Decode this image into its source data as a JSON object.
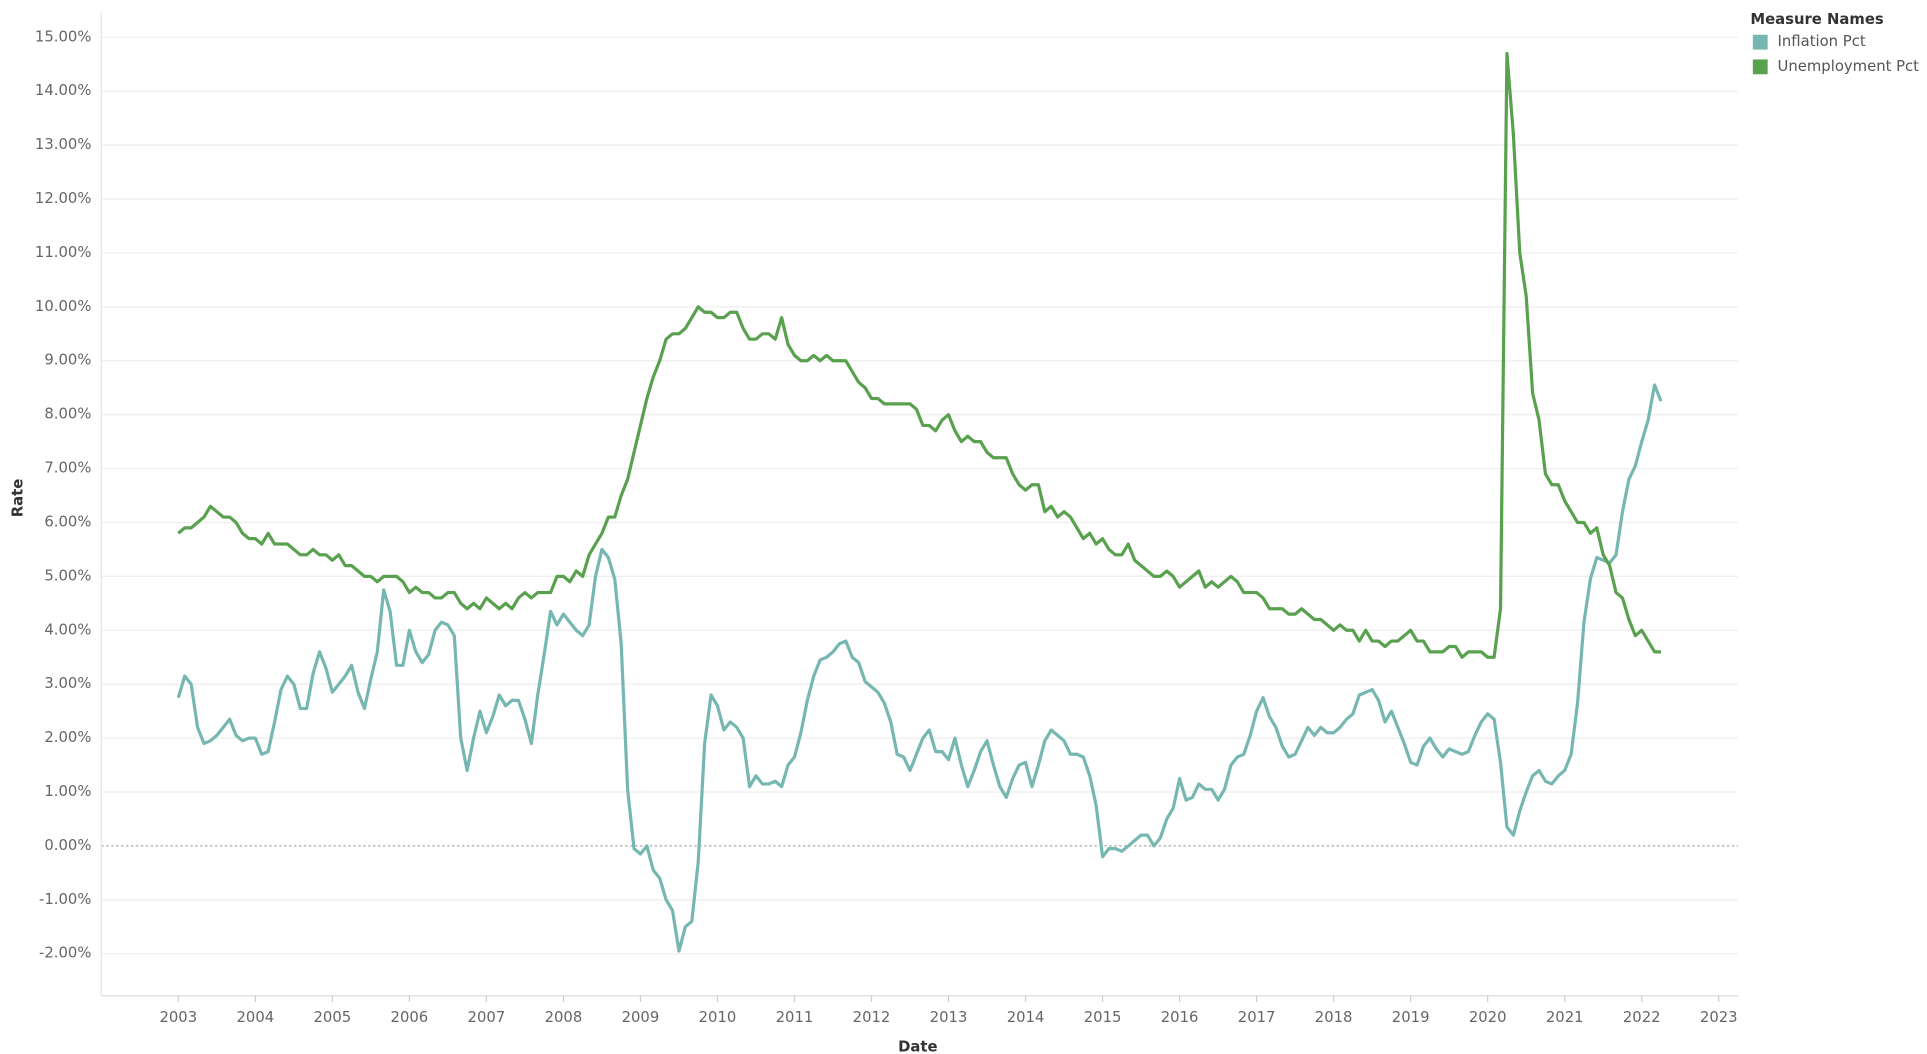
{
  "chart_data": {
    "type": "line",
    "x_label": "Date",
    "y_label": "Rate",
    "legend_title": "Measure Names",
    "legend": "top-right",
    "grid": true,
    "xlim": [
      "2002-01",
      "2023-04"
    ],
    "xticks": [
      2003,
      2004,
      2005,
      2006,
      2007,
      2008,
      2009,
      2010,
      2011,
      2012,
      2013,
      2014,
      2015,
      2016,
      2017,
      2018,
      2019,
      2020,
      2021,
      2022,
      2023
    ],
    "ylim": [
      -2.78,
      15.46
    ],
    "yticks": [
      {
        "value": -2,
        "label": "-2.00%"
      },
      {
        "value": -1,
        "label": "-1.00%"
      },
      {
        "value": 0,
        "label": "0.00%"
      },
      {
        "value": 1,
        "label": "1.00%"
      },
      {
        "value": 2,
        "label": "2.00%"
      },
      {
        "value": 3,
        "label": "3.00%"
      },
      {
        "value": 4,
        "label": "4.00%"
      },
      {
        "value": 5,
        "label": "5.00%"
      },
      {
        "value": 6,
        "label": "6.00%"
      },
      {
        "value": 7,
        "label": "7.00%"
      },
      {
        "value": 8,
        "label": "8.00%"
      },
      {
        "value": 9,
        "label": "9.00%"
      },
      {
        "value": 10,
        "label": "10.00%"
      },
      {
        "value": 11,
        "label": "11.00%"
      },
      {
        "value": 12,
        "label": "12.00%"
      },
      {
        "value": 13,
        "label": "13.00%"
      },
      {
        "value": 14,
        "label": "14.00%"
      },
      {
        "value": 15,
        "label": "15.00%"
      }
    ],
    "x": [
      "2003-01",
      "2003-02",
      "2003-03",
      "2003-04",
      "2003-05",
      "2003-06",
      "2003-07",
      "2003-08",
      "2003-09",
      "2003-10",
      "2003-11",
      "2003-12",
      "2004-01",
      "2004-02",
      "2004-03",
      "2004-04",
      "2004-05",
      "2004-06",
      "2004-07",
      "2004-08",
      "2004-09",
      "2004-10",
      "2004-11",
      "2004-12",
      "2005-01",
      "2005-02",
      "2005-03",
      "2005-04",
      "2005-05",
      "2005-06",
      "2005-07",
      "2005-08",
      "2005-09",
      "2005-10",
      "2005-11",
      "2005-12",
      "2006-01",
      "2006-02",
      "2006-03",
      "2006-04",
      "2006-05",
      "2006-06",
      "2006-07",
      "2006-08",
      "2006-09",
      "2006-10",
      "2006-11",
      "2006-12",
      "2007-01",
      "2007-02",
      "2007-03",
      "2007-04",
      "2007-05",
      "2007-06",
      "2007-07",
      "2007-08",
      "2007-09",
      "2007-10",
      "2007-11",
      "2007-12",
      "2008-01",
      "2008-02",
      "2008-03",
      "2008-04",
      "2008-05",
      "2008-06",
      "2008-07",
      "2008-08",
      "2008-09",
      "2008-10",
      "2008-11",
      "2008-12",
      "2009-01",
      "2009-02",
      "2009-03",
      "2009-04",
      "2009-05",
      "2009-06",
      "2009-07",
      "2009-08",
      "2009-09",
      "2009-10",
      "2009-11",
      "2009-12",
      "2010-01",
      "2010-02",
      "2010-03",
      "2010-04",
      "2010-05",
      "2010-06",
      "2010-07",
      "2010-08",
      "2010-09",
      "2010-10",
      "2010-11",
      "2010-12",
      "2011-01",
      "2011-02",
      "2011-03",
      "2011-04",
      "2011-05",
      "2011-06",
      "2011-07",
      "2011-08",
      "2011-09",
      "2011-10",
      "2011-11",
      "2011-12",
      "2012-01",
      "2012-02",
      "2012-03",
      "2012-04",
      "2012-05",
      "2012-06",
      "2012-07",
      "2012-08",
      "2012-09",
      "2012-10",
      "2012-11",
      "2012-12",
      "2013-01",
      "2013-02",
      "2013-03",
      "2013-04",
      "2013-05",
      "2013-06",
      "2013-07",
      "2013-08",
      "2013-09",
      "2013-10",
      "2013-11",
      "2013-12",
      "2014-01",
      "2014-02",
      "2014-03",
      "2014-04",
      "2014-05",
      "2014-06",
      "2014-07",
      "2014-08",
      "2014-09",
      "2014-10",
      "2014-11",
      "2014-12",
      "2015-01",
      "2015-02",
      "2015-03",
      "2015-04",
      "2015-05",
      "2015-06",
      "2015-07",
      "2015-08",
      "2015-09",
      "2015-10",
      "2015-11",
      "2015-12",
      "2016-01",
      "2016-02",
      "2016-03",
      "2016-04",
      "2016-05",
      "2016-06",
      "2016-07",
      "2016-08",
      "2016-09",
      "2016-10",
      "2016-11",
      "2016-12",
      "2017-01",
      "2017-02",
      "2017-03",
      "2017-04",
      "2017-05",
      "2017-06",
      "2017-07",
      "2017-08",
      "2017-09",
      "2017-10",
      "2017-11",
      "2017-12",
      "2018-01",
      "2018-02",
      "2018-03",
      "2018-04",
      "2018-05",
      "2018-06",
      "2018-07",
      "2018-08",
      "2018-09",
      "2018-10",
      "2018-11",
      "2018-12",
      "2019-01",
      "2019-02",
      "2019-03",
      "2019-04",
      "2019-05",
      "2019-06",
      "2019-07",
      "2019-08",
      "2019-09",
      "2019-10",
      "2019-11",
      "2019-12",
      "2020-01",
      "2020-02",
      "2020-03",
      "2020-04",
      "2020-05",
      "2020-06",
      "2020-07",
      "2020-08",
      "2020-09",
      "2020-10",
      "2020-11",
      "2020-12",
      "2021-01",
      "2021-02",
      "2021-03",
      "2021-04",
      "2021-05",
      "2021-06",
      "2021-07",
      "2021-08",
      "2021-09",
      "2021-10",
      "2021-11",
      "2021-12",
      "2022-01",
      "2022-02",
      "2022-03",
      "2022-04"
    ],
    "series": [
      {
        "name": "Inflation Pct",
        "color": "#76b7b2",
        "values": [
          2.75,
          3.15,
          3.0,
          2.2,
          1.9,
          1.95,
          2.05,
          2.2,
          2.35,
          2.05,
          1.95,
          2.0,
          2.0,
          1.7,
          1.75,
          2.3,
          2.9,
          3.15,
          3.0,
          2.55,
          2.55,
          3.2,
          3.6,
          3.3,
          2.85,
          3.0,
          3.15,
          3.35,
          2.85,
          2.55,
          3.1,
          3.6,
          4.75,
          4.35,
          3.35,
          3.35,
          4.0,
          3.6,
          3.4,
          3.55,
          4.0,
          4.15,
          4.1,
          3.9,
          2.0,
          1.4,
          2.0,
          2.5,
          2.1,
          2.4,
          2.8,
          2.6,
          2.7,
          2.7,
          2.35,
          1.9,
          2.8,
          3.55,
          4.35,
          4.1,
          4.3,
          4.15,
          4.0,
          3.9,
          4.1,
          5.0,
          5.5,
          5.35,
          4.95,
          3.75,
          1.05,
          -0.05,
          -0.15,
          0.0,
          -0.45,
          -0.6,
          -1.0,
          -1.2,
          -1.95,
          -1.5,
          -1.4,
          -0.3,
          1.9,
          2.8,
          2.6,
          2.15,
          2.3,
          2.2,
          2.0,
          1.1,
          1.3,
          1.15,
          1.15,
          1.2,
          1.1,
          1.5,
          1.65,
          2.1,
          2.7,
          3.15,
          3.45,
          3.5,
          3.6,
          3.75,
          3.8,
          3.5,
          3.4,
          3.05,
          2.95,
          2.85,
          2.65,
          2.3,
          1.7,
          1.65,
          1.4,
          1.7,
          2.0,
          2.15,
          1.75,
          1.75,
          1.6,
          2.0,
          1.5,
          1.1,
          1.4,
          1.75,
          1.95,
          1.5,
          1.1,
          0.9,
          1.25,
          1.5,
          1.55,
          1.1,
          1.5,
          1.95,
          2.15,
          2.05,
          1.95,
          1.7,
          1.7,
          1.65,
          1.3,
          0.75,
          -0.2,
          -0.05,
          -0.05,
          -0.1,
          0.0,
          0.1,
          0.2,
          0.2,
          0.0,
          0.15,
          0.5,
          0.7,
          1.25,
          0.85,
          0.9,
          1.15,
          1.05,
          1.05,
          0.85,
          1.05,
          1.5,
          1.65,
          1.7,
          2.05,
          2.5,
          2.75,
          2.4,
          2.2,
          1.85,
          1.65,
          1.7,
          1.95,
          2.2,
          2.05,
          2.2,
          2.1,
          2.1,
          2.2,
          2.35,
          2.45,
          2.8,
          2.85,
          2.9,
          2.7,
          2.3,
          2.5,
          2.2,
          1.9,
          1.55,
          1.5,
          1.85,
          2.0,
          1.8,
          1.65,
          1.8,
          1.75,
          1.7,
          1.75,
          2.05,
          2.3,
          2.45,
          2.35,
          1.55,
          0.35,
          0.2,
          0.65,
          1.0,
          1.3,
          1.4,
          1.2,
          1.15,
          1.3,
          1.4,
          1.7,
          2.65,
          4.15,
          4.95,
          5.35,
          5.3,
          5.25,
          5.4,
          6.2,
          6.8,
          7.05,
          7.5,
          7.9,
          8.55,
          8.25
        ]
      },
      {
        "name": "Unemployment Pct",
        "color": "#59a14f",
        "values": [
          5.8,
          5.9,
          5.9,
          6.0,
          6.1,
          6.3,
          6.2,
          6.1,
          6.1,
          6.0,
          5.8,
          5.7,
          5.7,
          5.6,
          5.8,
          5.6,
          5.6,
          5.6,
          5.5,
          5.4,
          5.4,
          5.5,
          5.4,
          5.4,
          5.3,
          5.4,
          5.2,
          5.2,
          5.1,
          5.0,
          5.0,
          4.9,
          5.0,
          5.0,
          5.0,
          4.9,
          4.7,
          4.8,
          4.7,
          4.7,
          4.6,
          4.6,
          4.7,
          4.7,
          4.5,
          4.4,
          4.5,
          4.4,
          4.6,
          4.5,
          4.4,
          4.5,
          4.4,
          4.6,
          4.7,
          4.6,
          4.7,
          4.7,
          4.7,
          5.0,
          5.0,
          4.9,
          5.1,
          5.0,
          5.4,
          5.6,
          5.8,
          6.1,
          6.1,
          6.5,
          6.8,
          7.3,
          7.8,
          8.3,
          8.7,
          9.0,
          9.4,
          9.5,
          9.5,
          9.6,
          9.8,
          10.0,
          9.9,
          9.9,
          9.8,
          9.8,
          9.9,
          9.9,
          9.6,
          9.4,
          9.4,
          9.5,
          9.5,
          9.4,
          9.8,
          9.3,
          9.1,
          9.0,
          9.0,
          9.1,
          9.0,
          9.1,
          9.0,
          9.0,
          9.0,
          8.8,
          8.6,
          8.5,
          8.3,
          8.3,
          8.2,
          8.2,
          8.2,
          8.2,
          8.2,
          8.1,
          7.8,
          7.8,
          7.7,
          7.9,
          8.0,
          7.7,
          7.5,
          7.6,
          7.5,
          7.5,
          7.3,
          7.2,
          7.2,
          7.2,
          6.9,
          6.7,
          6.6,
          6.7,
          6.7,
          6.2,
          6.3,
          6.1,
          6.2,
          6.1,
          5.9,
          5.7,
          5.8,
          5.6,
          5.7,
          5.5,
          5.4,
          5.4,
          5.6,
          5.3,
          5.2,
          5.1,
          5.0,
          5.0,
          5.1,
          5.0,
          4.8,
          4.9,
          5.0,
          5.1,
          4.8,
          4.9,
          4.8,
          4.9,
          5.0,
          4.9,
          4.7,
          4.7,
          4.7,
          4.6,
          4.4,
          4.4,
          4.4,
          4.3,
          4.3,
          4.4,
          4.3,
          4.2,
          4.2,
          4.1,
          4.0,
          4.1,
          4.0,
          4.0,
          3.8,
          4.0,
          3.8,
          3.8,
          3.7,
          3.8,
          3.8,
          3.9,
          4.0,
          3.8,
          3.8,
          3.6,
          3.6,
          3.6,
          3.7,
          3.7,
          3.5,
          3.6,
          3.6,
          3.6,
          3.5,
          3.5,
          4.4,
          14.7,
          13.2,
          11.0,
          10.2,
          8.4,
          7.9,
          6.9,
          6.7,
          6.7,
          6.4,
          6.2,
          6.0,
          6.0,
          5.8,
          5.9,
          5.4,
          5.2,
          4.7,
          4.6,
          4.2,
          3.9,
          4.0,
          3.8,
          3.6,
          3.6
        ]
      }
    ]
  }
}
